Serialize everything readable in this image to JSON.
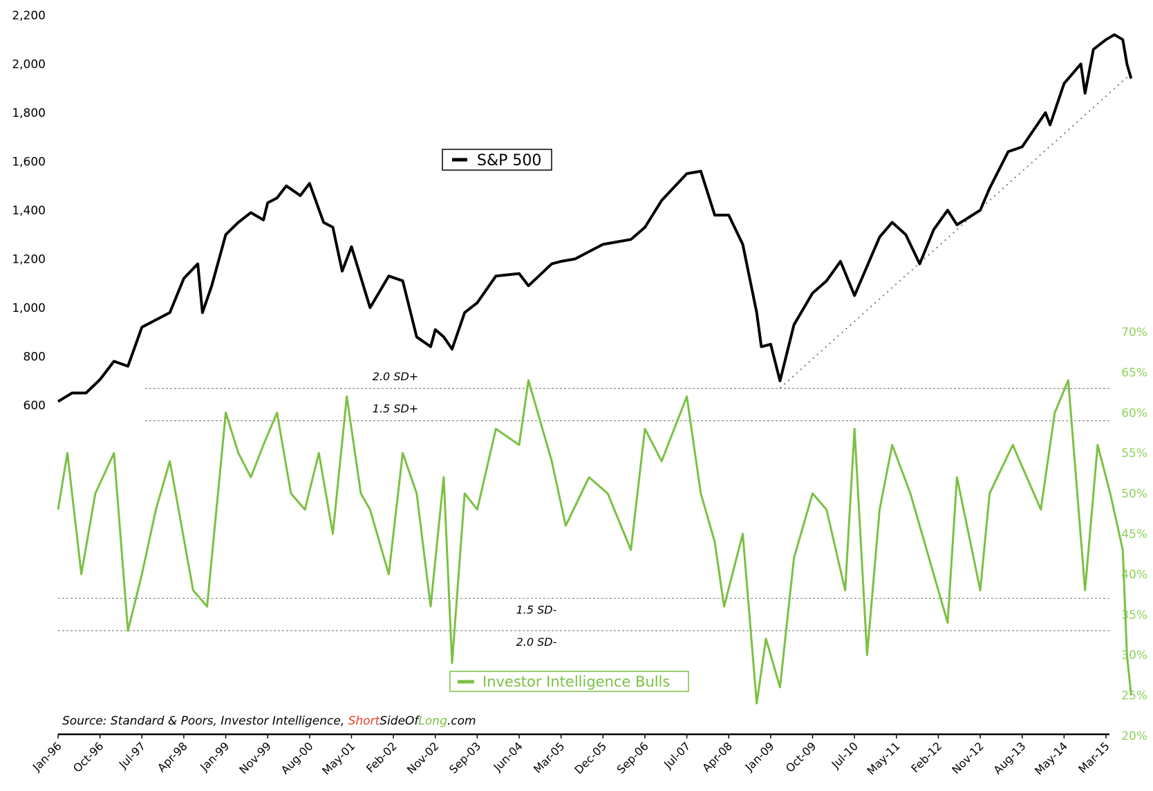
{
  "chart_data": {
    "type": "line",
    "title": "",
    "xlabel": "",
    "x_tick_labels": [
      "Jan-96",
      "Oct-96",
      "Jul-97",
      "Apr-98",
      "Jan-99",
      "Nov-99",
      "Aug-00",
      "May-01",
      "Feb-02",
      "Nov-02",
      "Sep-03",
      "Jun-04",
      "Mar-05",
      "Dec-05",
      "Sep-06",
      "Jul-07",
      "Apr-08",
      "Jan-09",
      "Oct-09",
      "Jul-10",
      "May-11",
      "Feb-12",
      "Nov-12",
      "Aug-13",
      "May-14",
      "Mar-15"
    ],
    "left_axis": {
      "label": "",
      "ylim": [
        600,
        2200
      ],
      "tick_labels": [
        "600",
        "800",
        "1,000",
        "1,200",
        "1,400",
        "1,600",
        "1,800",
        "2,000",
        "2,200"
      ]
    },
    "right_axis": {
      "label": "",
      "ylim": [
        20,
        70
      ],
      "tick_labels": [
        "20%",
        "25%",
        "30%",
        "35%",
        "40%",
        "45%",
        "50%",
        "55%",
        "60%",
        "65%",
        "70%"
      ]
    },
    "series": [
      {
        "name": "S&P 500",
        "axis": "left",
        "color": "#000000",
        "x": [
          "Jan-96",
          "Apr-96",
          "Jul-96",
          "Oct-96",
          "Jan-97",
          "Apr-97",
          "Jul-97",
          "Oct-97",
          "Jan-98",
          "Apr-98",
          "Jul-98",
          "Aug-98",
          "Oct-98",
          "Jan-99",
          "Apr-99",
          "Jul-99",
          "Oct-99",
          "Nov-99",
          "Jan-00",
          "Mar-00",
          "Jun-00",
          "Aug-00",
          "Nov-00",
          "Jan-01",
          "Mar-01",
          "May-01",
          "Sep-01",
          "Jan-02",
          "Apr-02",
          "Jul-02",
          "Oct-02",
          "Nov-02",
          "Jan-03",
          "Mar-03",
          "Jun-03",
          "Sep-03",
          "Jan-04",
          "Jun-04",
          "Aug-04",
          "Jan-05",
          "Mar-05",
          "Jun-05",
          "Dec-05",
          "Jun-06",
          "Sep-06",
          "Jan-07",
          "Jul-07",
          "Oct-07",
          "Jan-08",
          "Apr-08",
          "Jul-08",
          "Oct-08",
          "Nov-08",
          "Jan-09",
          "Mar-09",
          "Jun-09",
          "Oct-09",
          "Jan-10",
          "Apr-10",
          "Jul-10",
          "Jan-11",
          "Apr-11",
          "Jul-11",
          "Oct-11",
          "Jan-12",
          "Apr-12",
          "Jun-12",
          "Nov-12",
          "Jan-13",
          "May-13",
          "Aug-13",
          "Jan-14",
          "Feb-14",
          "May-14",
          "Sep-14",
          "Oct-14",
          "Dec-14",
          "Mar-15",
          "May-15",
          "Jul-15",
          "Aug-15",
          "Sep-15"
        ],
        "values": [
          615,
          650,
          650,
          705,
          780,
          760,
          920,
          950,
          980,
          1120,
          1180,
          980,
          1090,
          1300,
          1350,
          1390,
          1360,
          1430,
          1450,
          1500,
          1460,
          1510,
          1350,
          1330,
          1150,
          1250,
          1000,
          1130,
          1110,
          880,
          840,
          910,
          880,
          830,
          980,
          1020,
          1130,
          1140,
          1090,
          1180,
          1190,
          1200,
          1260,
          1280,
          1330,
          1440,
          1550,
          1560,
          1380,
          1380,
          1260,
          980,
          840,
          850,
          700,
          930,
          1060,
          1110,
          1190,
          1050,
          1290,
          1350,
          1300,
          1180,
          1320,
          1400,
          1340,
          1400,
          1490,
          1640,
          1660,
          1800,
          1750,
          1920,
          2000,
          1880,
          2060,
          2100,
          2120,
          2100,
          2000,
          1940
        ]
      },
      {
        "name": "Investor Intelligence Bulls",
        "axis": "right",
        "color": "#7ac143",
        "x": [
          "Jan-96",
          "Mar-96",
          "Jun-96",
          "Sep-96",
          "Jan-97",
          "Apr-97",
          "Jul-97",
          "Oct-97",
          "Jan-98",
          "Jun-98",
          "Sep-98",
          "Jan-99",
          "Apr-99",
          "Jul-99",
          "Oct-99",
          "Jan-00",
          "Apr-00",
          "Jul-00",
          "Oct-00",
          "Jan-01",
          "Apr-01",
          "Jul-01",
          "Sep-01",
          "Jan-02",
          "Apr-02",
          "Jul-02",
          "Oct-02",
          "Jan-03",
          "Mar-03",
          "Jun-03",
          "Sep-03",
          "Jan-04",
          "Jun-04",
          "Aug-04",
          "Jan-05",
          "Apr-05",
          "Sep-05",
          "Jan-06",
          "Jun-06",
          "Sep-06",
          "Jan-07",
          "Jul-07",
          "Oct-07",
          "Jan-08",
          "Mar-08",
          "Jul-08",
          "Oct-08",
          "Dec-08",
          "Mar-09",
          "Jun-09",
          "Oct-09",
          "Jan-10",
          "May-10",
          "Jul-10",
          "Oct-10",
          "Jan-11",
          "Apr-11",
          "Aug-11",
          "Jan-12",
          "Apr-12",
          "Jun-12",
          "Nov-12",
          "Jan-13",
          "Jun-13",
          "Dec-13",
          "Mar-14",
          "Jun-14",
          "Oct-14",
          "Jan-15",
          "Apr-15",
          "Jul-15",
          "Aug-15",
          "Sep-15"
        ],
        "values": [
          48,
          55,
          40,
          50,
          55,
          33,
          40,
          48,
          54,
          38,
          36,
          60,
          55,
          52,
          56,
          60,
          50,
          48,
          55,
          45,
          62,
          50,
          48,
          40,
          55,
          50,
          36,
          52,
          29,
          50,
          48,
          58,
          56,
          64,
          54,
          46,
          52,
          50,
          43,
          58,
          54,
          62,
          50,
          44,
          36,
          45,
          24,
          32,
          26,
          42,
          50,
          48,
          38,
          58,
          30,
          48,
          56,
          50,
          40,
          34,
          52,
          38,
          50,
          56,
          48,
          60,
          64,
          38,
          56,
          50,
          43,
          30,
          25
        ]
      }
    ],
    "reference_lines": [
      {
        "label": "2.0 SD+",
        "value": 63
      },
      {
        "label": "1.5 SD+",
        "value": 59
      },
      {
        "label": "1.5 SD-",
        "value": 37
      },
      {
        "label": "2.0 SD-",
        "value": 33
      }
    ],
    "trendline": {
      "style": "dotted",
      "from": {
        "x": "Mar-09",
        "y": 670
      },
      "to": {
        "x": "Sep-15",
        "y": 1960
      }
    },
    "legend": [
      {
        "name": "S&P 500",
        "placement": "center-left"
      },
      {
        "name": "Investor Intelligence Bulls",
        "placement": "bottom-center"
      }
    ],
    "annotation": {
      "prefix": "Source: Standard & Poors, Investor Intelligence, ",
      "brand_1": "Short",
      "brand_2": "Side",
      "brand_3": "Of",
      "brand_4": "Long",
      "suffix": ".com",
      "brand_colors": {
        "short": "#e8402a",
        "side": "#000000",
        "of": "#000000",
        "long": "#7ac143"
      }
    },
    "grid": false
  }
}
